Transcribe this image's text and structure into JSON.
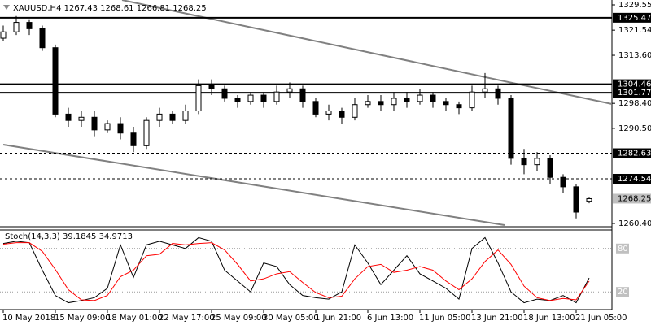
{
  "chart_data": [
    {
      "type": "candlestick",
      "title": "XAUUSD,H4",
      "color": "#000000",
      "categories": [
        "10 May 2018",
        null,
        null,
        null,
        "15 May 09:00",
        null,
        null,
        null,
        "18 May 01:00",
        null,
        null,
        null,
        "22 May 17:00",
        null,
        null,
        null,
        "25 May 09:00",
        null,
        null,
        null,
        "30 May 05:00",
        null,
        null,
        null,
        "1 Jun 21:00",
        null,
        null,
        null,
        "6 Jun 13:00",
        null,
        null,
        null,
        "11 Jun 05:00",
        null,
        null,
        null,
        "13 Jun 21:00",
        null,
        null,
        null,
        "18 Jun 13:00",
        null,
        null,
        null,
        "21 Jun 05:00",
        null
      ],
      "open": [
        1319,
        1321,
        1324,
        1322,
        1316,
        1295,
        1293,
        1294,
        1290,
        1292,
        1289,
        1285,
        1293,
        1295,
        1293,
        1296,
        1304,
        1303,
        1300,
        1299,
        1301,
        1299,
        1302,
        1303,
        1299,
        1295,
        1296,
        1294,
        1298,
        1299,
        1298,
        1300,
        1299,
        1301,
        1299,
        1298,
        1297,
        1302,
        1303,
        1300,
        1281,
        1279,
        1281,
        1275,
        1272,
        1267.43
      ],
      "high": [
        1323,
        1326,
        1325,
        1323,
        1317,
        1297,
        1296,
        1296,
        1293,
        1294,
        1291,
        1294,
        1297,
        1296,
        1298,
        1306,
        1306,
        1304,
        1301,
        1302,
        1302,
        1304,
        1305,
        1304,
        1300,
        1298,
        1297,
        1300,
        1301,
        1301,
        1302,
        1302,
        1303,
        1302,
        1300,
        1299,
        1304,
        1308,
        1304,
        1301,
        1284,
        1283,
        1282,
        1276,
        1273,
        1268.61
      ],
      "low": [
        1318,
        1320,
        1320,
        1315,
        1294,
        1291,
        1291,
        1288,
        1289,
        1287,
        1283,
        1284,
        1291,
        1292,
        1292,
        1295,
        1301,
        1299,
        1297,
        1298,
        1297,
        1298,
        1300,
        1297,
        1294,
        1293,
        1292,
        1293,
        1297,
        1296,
        1296,
        1297,
        1298,
        1297,
        1296,
        1295,
        1296,
        1300,
        1298,
        1279,
        1276,
        1277,
        1273,
        1270,
        1262,
        1266.81
      ],
      "close": [
        1321,
        1324,
        1322,
        1316,
        1295,
        1293,
        1294,
        1290,
        1292,
        1289,
        1285,
        1293,
        1295,
        1293,
        1296,
        1304,
        1303,
        1300,
        1299,
        1301,
        1299,
        1302,
        1303,
        1299,
        1295,
        1296,
        1294,
        1298,
        1299,
        1298,
        1300,
        1299,
        1301,
        1299,
        1298,
        1297,
        1302,
        1303,
        1300,
        1281,
        1279,
        1281,
        1275,
        1272,
        1264,
        1268.25
      ],
      "ylim": [
        1259.63,
        1331.09
      ],
      "yticks": [
        1329.55,
        1321.54,
        {
          "value": 1313.6,
          "label": "1313.60"
        },
        {
          "value": 1298.4,
          "label": "1298.40"
        },
        {
          "value": 1290.5,
          "label": "1290.50"
        },
        {
          "value": 1260.4,
          "label": "1260.40"
        }
      ],
      "levels": [
        {
          "value": 1325.47,
          "dashed": false
        },
        {
          "value": 1304.46,
          "dashed": false
        },
        {
          "value": 1301.77,
          "dashed": false
        },
        {
          "value": 1282.63,
          "dashed": true
        },
        {
          "value": 1274.54,
          "dashed": true
        }
      ]
    },
    {
      "type": "line",
      "title": "Stoch(14,3,3)",
      "series": [
        {
          "color": "#000000",
          "values": [
            87,
            90,
            88,
            50,
            15,
            5,
            8,
            12,
            25,
            85,
            40,
            85,
            90,
            85,
            80,
            95,
            90,
            50,
            35,
            20,
            60,
            55,
            30,
            15,
            12,
            10,
            20,
            85,
            60,
            30,
            50,
            70,
            45,
            35,
            25,
            10,
            80,
            95,
            60,
            20,
            5,
            10,
            8,
            15,
            5,
            39.1845
          ]
        },
        {
          "color": "#ff0000",
          "values": [
            86,
            88,
            88,
            76,
            51,
            23,
            9,
            8,
            15,
            41,
            50,
            70,
            72,
            87,
            85,
            87,
            88,
            78,
            58,
            35,
            38,
            45,
            48,
            33,
            19,
            12,
            14,
            38,
            55,
            58,
            47,
            50,
            55,
            50,
            35,
            23,
            38,
            62,
            78,
            58,
            28,
            12,
            8,
            11,
            9,
            34.9713
          ]
        }
      ],
      "ylim": [
        0,
        100
      ],
      "yticks": [
        20,
        80
      ]
    }
  ]
}
